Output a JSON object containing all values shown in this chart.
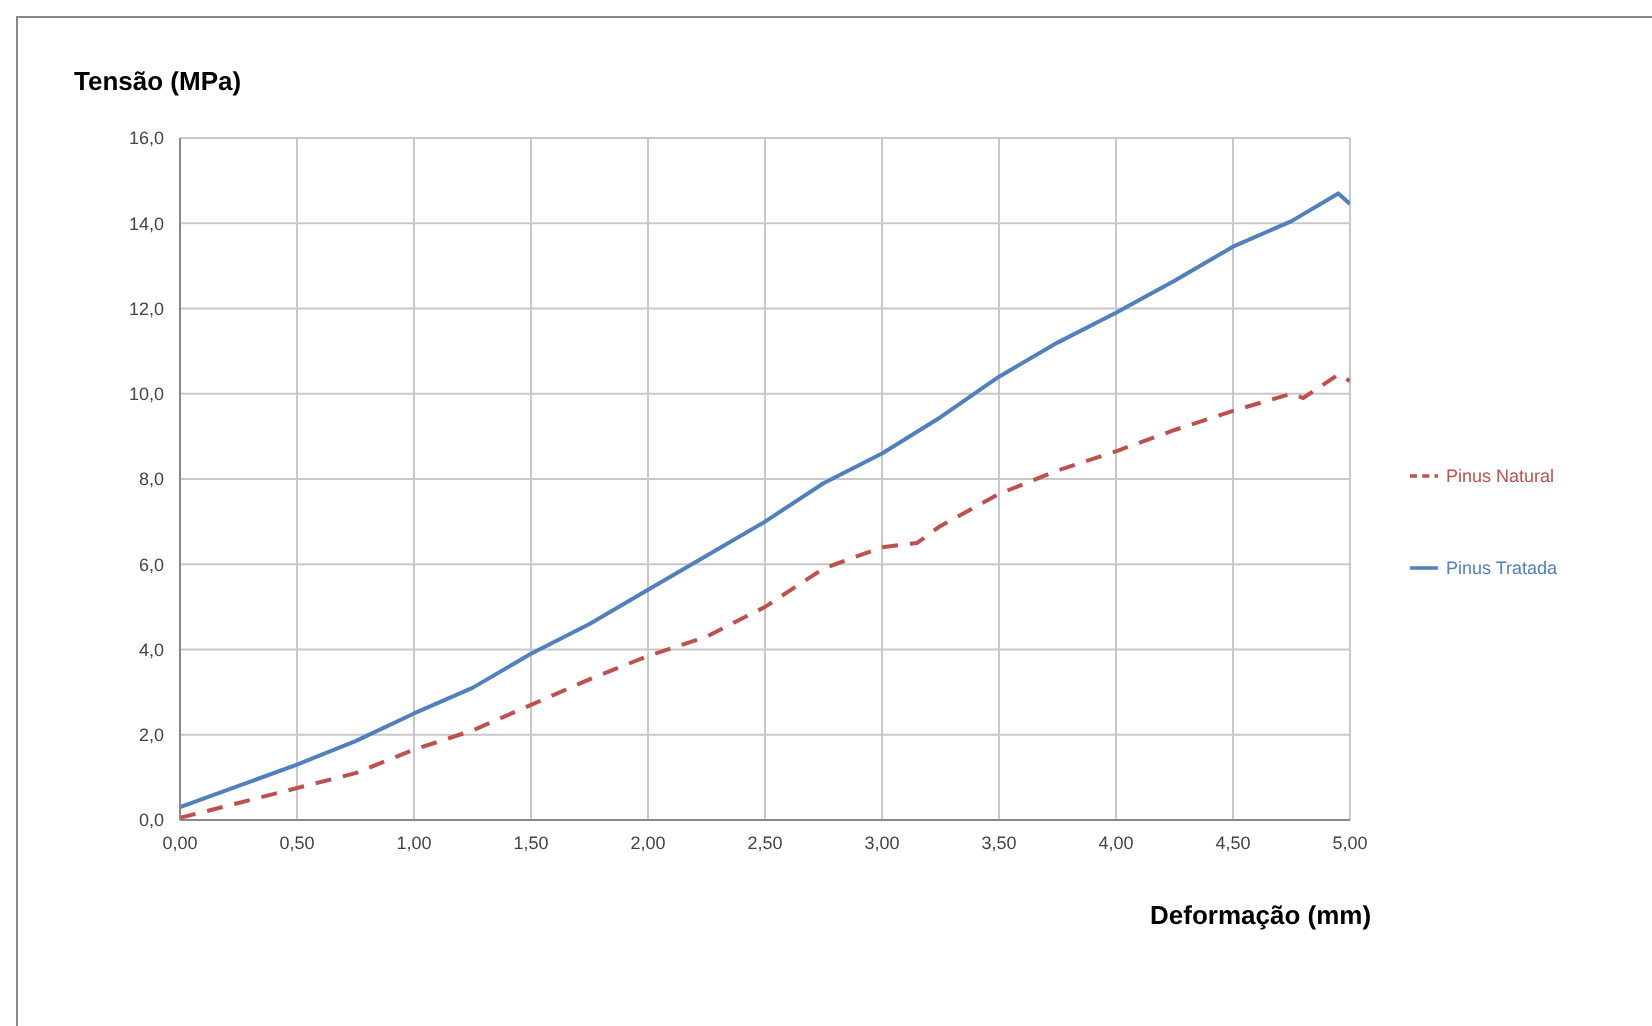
{
  "chart_data": {
    "type": "line",
    "xlabel": "Deformação (mm)",
    "ylabel": "Tensão (MPa)",
    "xlim": [
      0,
      5
    ],
    "xticks": [
      {
        "value": 0,
        "label": "0,00"
      },
      {
        "value": 0.5,
        "label": "0,50"
      },
      {
        "value": 1,
        "label": "1,00"
      },
      {
        "value": 1.5,
        "label": "1,50"
      },
      {
        "value": 2,
        "label": "2,00"
      },
      {
        "value": 2.5,
        "label": "2,50"
      },
      {
        "value": 3,
        "label": "3,00"
      },
      {
        "value": 3.5,
        "label": "3,50"
      },
      {
        "value": 4,
        "label": "4,00"
      },
      {
        "value": 4.5,
        "label": "4,50"
      },
      {
        "value": 5,
        "label": "5,00"
      }
    ],
    "ylim": [
      0,
      16
    ],
    "yticks": [
      {
        "value": 0,
        "label": "0,0"
      },
      {
        "value": 2,
        "label": "2,0"
      },
      {
        "value": 4,
        "label": "4,0"
      },
      {
        "value": 6,
        "label": "6,0"
      },
      {
        "value": 8,
        "label": "8,0"
      },
      {
        "value": 10,
        "label": "10,0"
      },
      {
        "value": 12,
        "label": "12,0"
      },
      {
        "value": 14,
        "label": "14,0"
      },
      {
        "value": 16,
        "label": "16,0"
      }
    ],
    "grid": true,
    "legend": "right",
    "marker": "none",
    "series": [
      {
        "name": "Pinus Natural",
        "color": "#c0504d",
        "line_style": "dashed",
        "x": [
          0,
          0.25,
          0.5,
          0.75,
          1,
          1.25,
          1.5,
          1.75,
          2,
          2.25,
          2.5,
          2.75,
          3,
          3.15,
          3.25,
          3.5,
          3.75,
          4,
          4.25,
          4.5,
          4.75,
          4.8,
          4.95,
          5
        ],
        "values": [
          0.05,
          0.4,
          0.75,
          1.1,
          1.65,
          2.1,
          2.7,
          3.3,
          3.85,
          4.3,
          5,
          5.9,
          6.4,
          6.5,
          6.9,
          7.65,
          8.2,
          8.65,
          9.15,
          9.6,
          10,
          9.9,
          10.45,
          10.3
        ]
      },
      {
        "name": "Pinus Tratada",
        "color": "#4f81bd",
        "line_style": "solid",
        "x": [
          0,
          0.25,
          0.5,
          0.75,
          1,
          1.25,
          1.5,
          1.75,
          2,
          2.25,
          2.5,
          2.75,
          3,
          3.25,
          3.5,
          3.75,
          4,
          4.25,
          4.5,
          4.75,
          4.95,
          5
        ],
        "values": [
          0.3,
          0.8,
          1.3,
          1.85,
          2.5,
          3.1,
          3.9,
          4.6,
          5.4,
          6.2,
          7,
          7.9,
          8.6,
          9.45,
          10.4,
          11.2,
          11.9,
          12.65,
          13.45,
          14.05,
          14.7,
          14.45
        ]
      }
    ]
  }
}
